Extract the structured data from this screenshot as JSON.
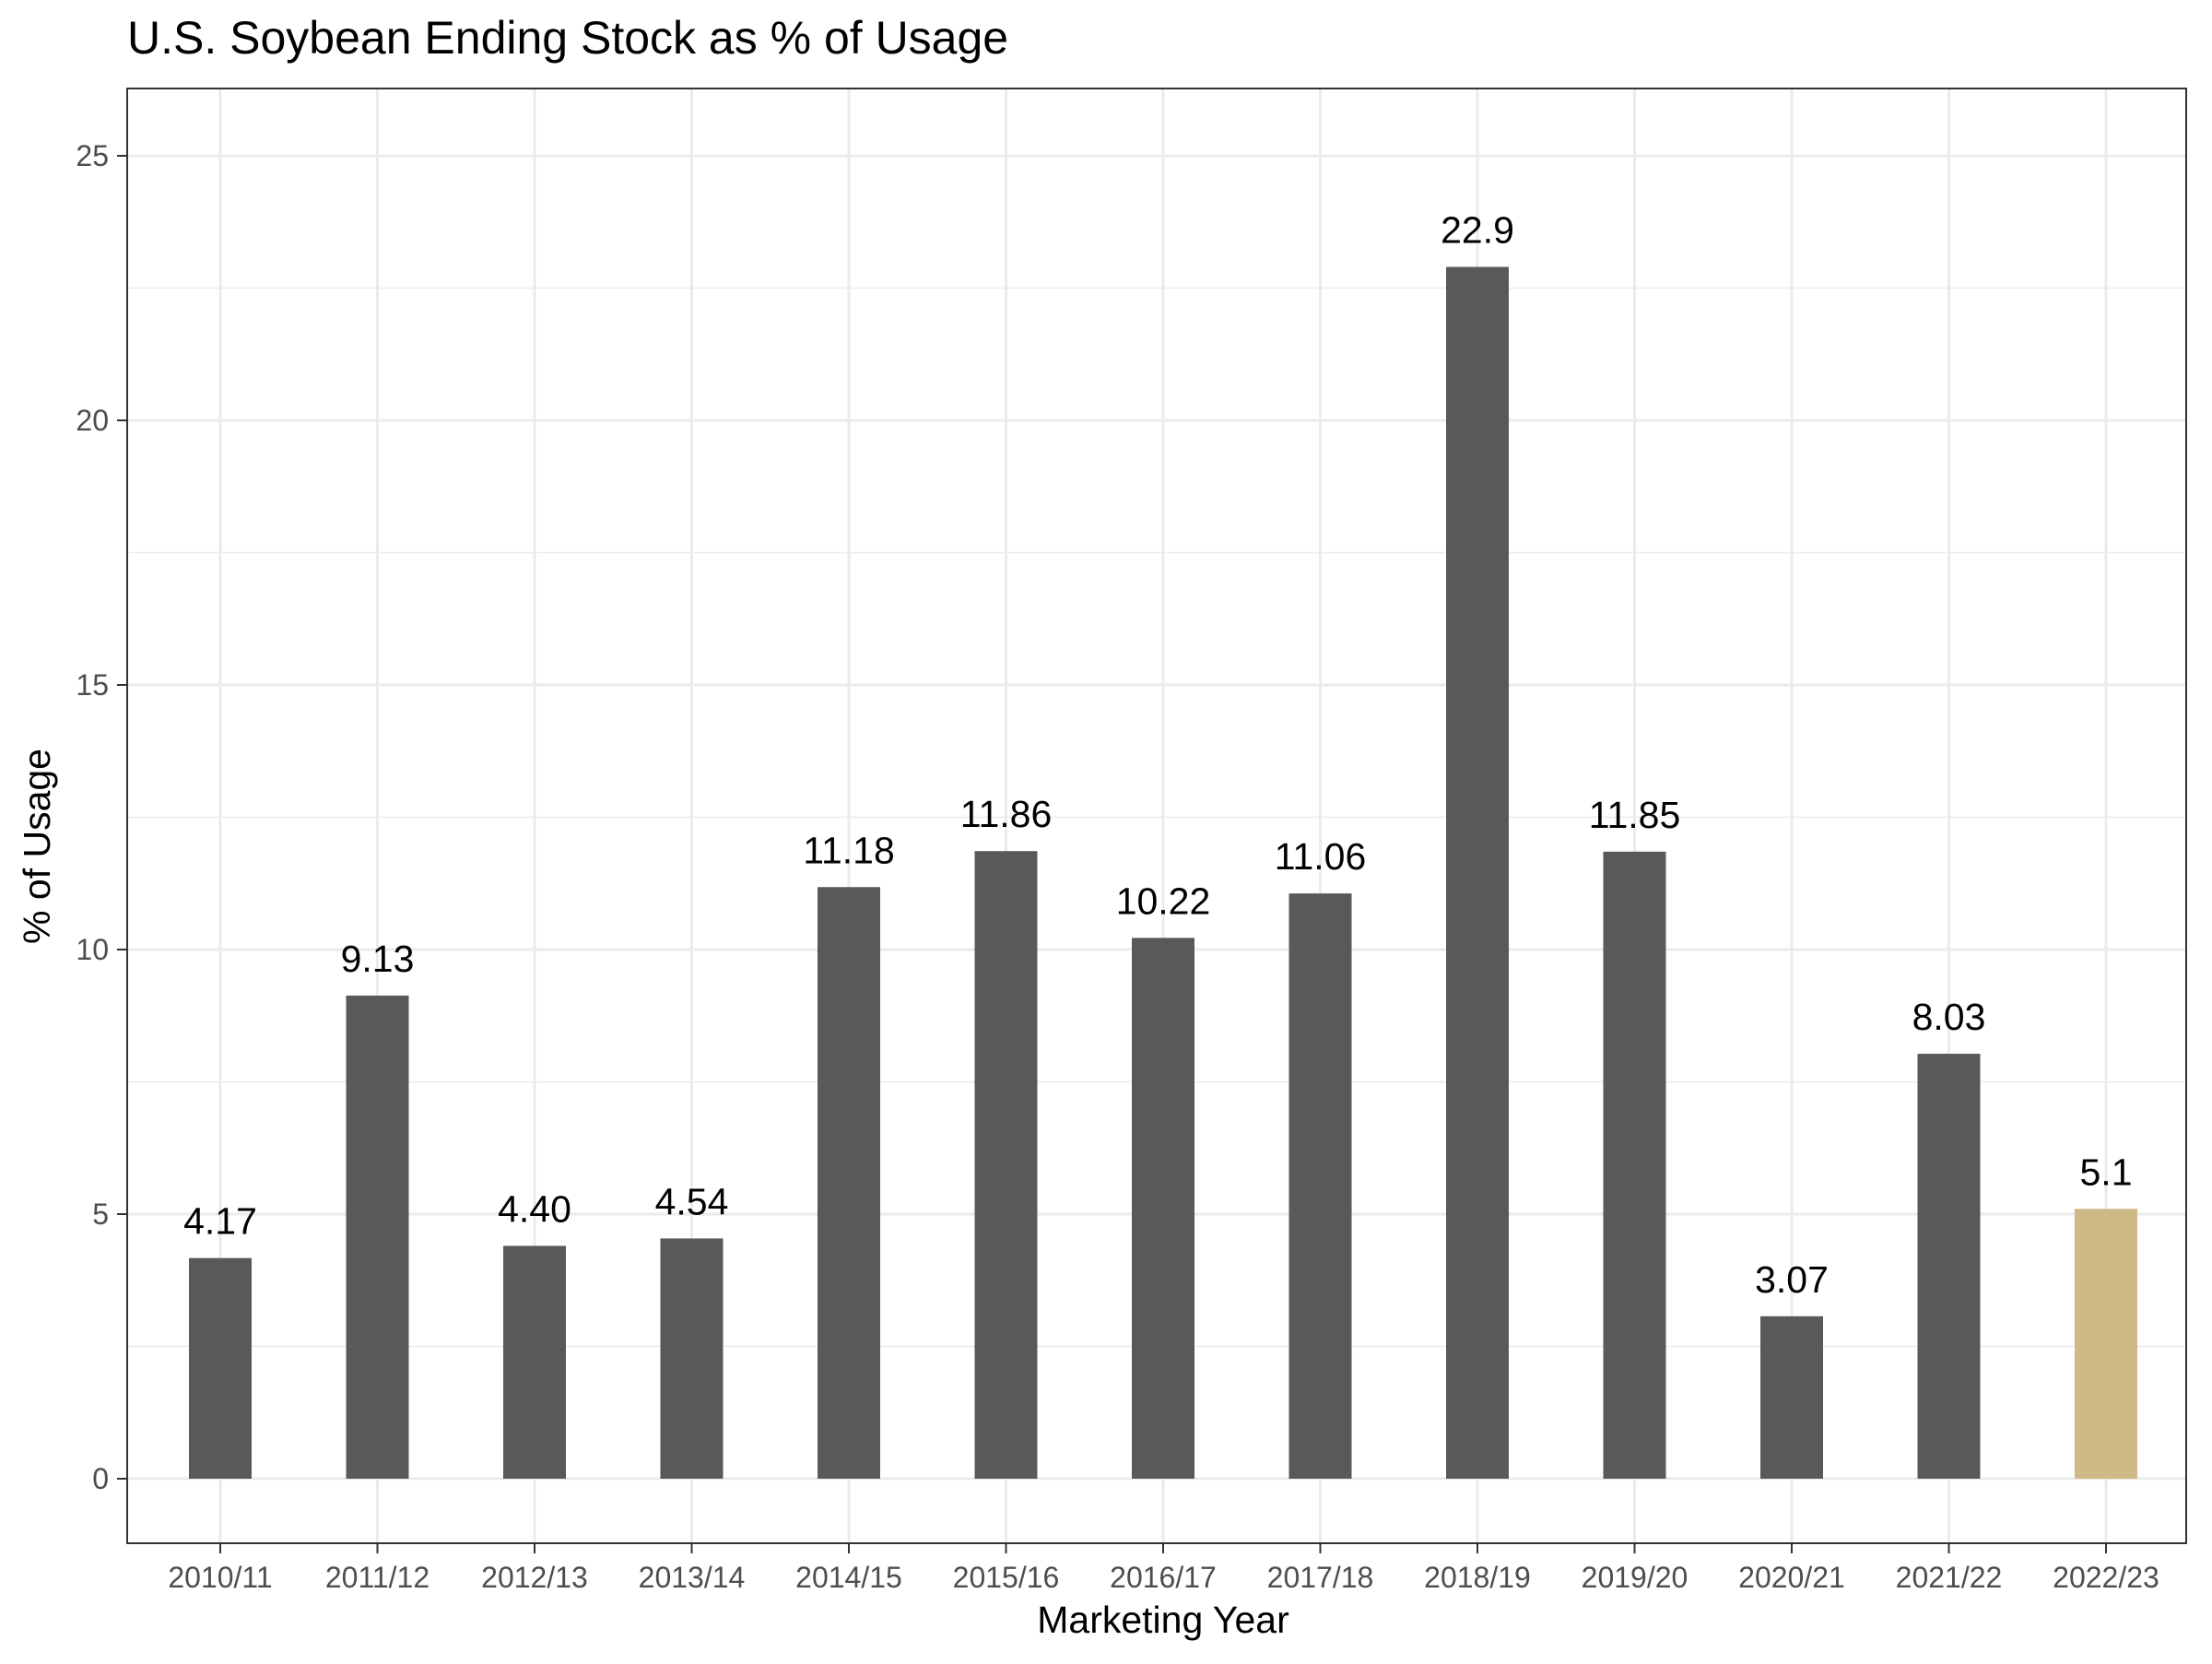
{
  "chart_data": {
    "type": "bar",
    "title": "U.S. Soybean Ending Stock as % of Usage",
    "xlabel": "Marketing Year",
    "ylabel": "% of Usage",
    "categories": [
      "2010/11",
      "2011/12",
      "2012/13",
      "2013/14",
      "2014/15",
      "2015/16",
      "2016/17",
      "2017/18",
      "2018/19",
      "2019/20",
      "2020/21",
      "2021/22",
      "2022/23"
    ],
    "values": [
      4.17,
      9.13,
      4.4,
      4.54,
      11.18,
      11.86,
      10.22,
      11.06,
      22.9,
      11.85,
      3.07,
      8.03,
      5.1
    ],
    "data_labels": [
      "4.17",
      "9.13",
      "4.40",
      "4.54",
      "11.18",
      "11.86",
      "10.22",
      "11.06",
      "22.9",
      "11.85",
      "3.07",
      "8.03",
      "5.1"
    ],
    "ylim": [
      0,
      25
    ],
    "yticks": [
      0,
      5,
      10,
      15,
      20,
      25
    ],
    "grid": true,
    "legend": "none",
    "colors": {
      "bar": "#595959",
      "highlight_bar": "#CFB987",
      "grid": "#EBEBEB",
      "panel_border": "#333333",
      "tick_label": "#4D4D4D",
      "text": "#000000"
    },
    "highlight_category": "2022/23"
  }
}
